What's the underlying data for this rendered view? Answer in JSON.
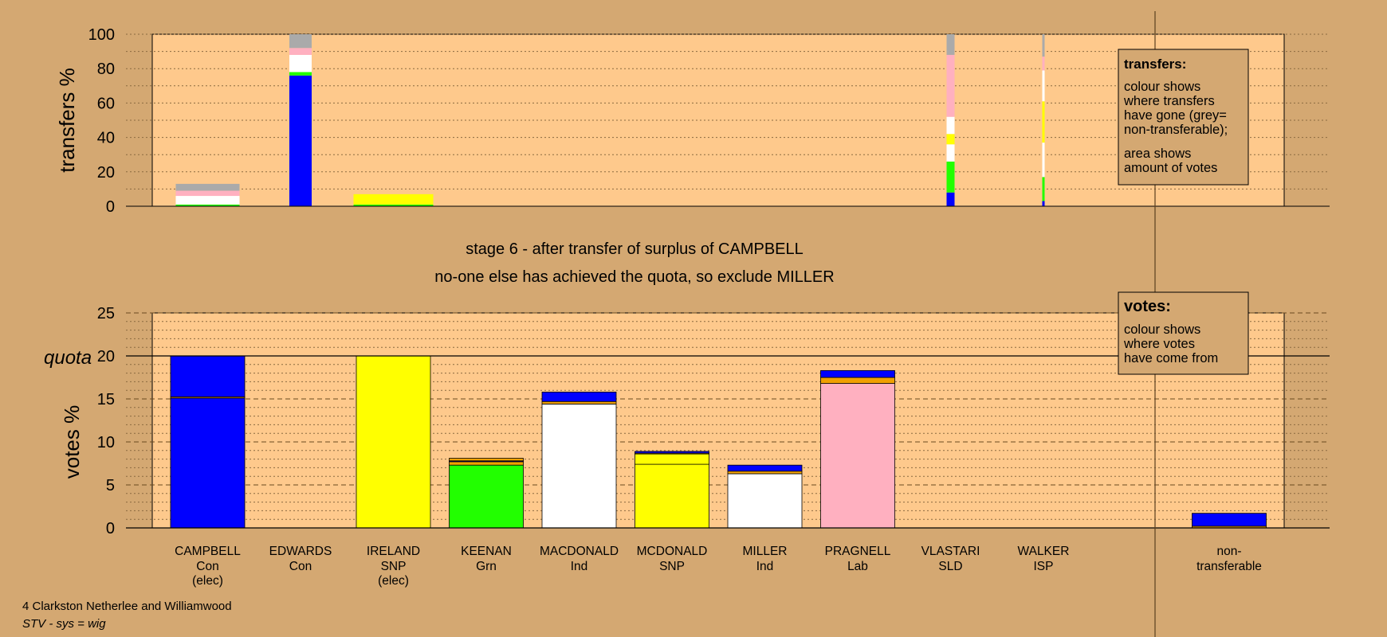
{
  "header": {
    "stage_line": "stage 6 - after transfer of surplus of CAMPBELL",
    "decision_line": "no-one else has achieved the quota, so exclude MILLER"
  },
  "footer": {
    "ward": "4 Clarkston Netherlee and Williamwood",
    "system": "STV - sys = wig"
  },
  "legend_transfers": {
    "title": "transfers:",
    "lines1": [
      "colour shows",
      "where transfers",
      "have gone (grey=",
      "non-transferable);"
    ],
    "lines2": [
      "area shows",
      "amount of votes"
    ]
  },
  "legend_votes": {
    "title": "votes:",
    "lines": [
      "colour shows",
      "where votes",
      "have come from"
    ]
  },
  "colors": {
    "background": "#d4a872",
    "plot_area": "#fec98c",
    "Con": "#0000ff",
    "SNP": "#ffff00",
    "Grn": "#22ff00",
    "Ind": "#ffffff",
    "Lab": "#ffb0c0",
    "orange": "#f0a000",
    "non_transferable": "#aaaaaa"
  },
  "chart_data": [
    {
      "type": "bar",
      "ylabel": "transfers %",
      "ylim": [
        0,
        100
      ],
      "yticks": [
        0,
        20,
        40,
        60,
        80,
        100
      ],
      "grid": true,
      "bars": [
        {
          "candidate": "CAMPBELL",
          "segments": [
            {
              "color": "#22ff00",
              "value": 1
            },
            {
              "color": "#ffffff",
              "value": 5
            },
            {
              "color": "#ffb0c0",
              "value": 3
            },
            {
              "color": "#aaaaaa",
              "value": 4
            }
          ]
        },
        {
          "candidate": "EDWARDS",
          "segments": [
            {
              "color": "#0000ff",
              "value": 76
            },
            {
              "color": "#22ff00",
              "value": 2
            },
            {
              "color": "#ffffff",
              "value": 10
            },
            {
              "color": "#ffb0c0",
              "value": 4
            },
            {
              "color": "#aaaaaa",
              "value": 8
            }
          ]
        },
        {
          "candidate": "IRELAND",
          "segments": [
            {
              "color": "#22ff00",
              "value": 1
            },
            {
              "color": "#ffff00",
              "value": 6
            }
          ]
        },
        {
          "candidate": "VLASTARI",
          "segments": [
            {
              "color": "#0000ff",
              "value": 8
            },
            {
              "color": "#22ff00",
              "value": 18
            },
            {
              "color": "#ffffff",
              "value": 10
            },
            {
              "color": "#ffff00",
              "value": 6
            },
            {
              "color": "#ffffff",
              "value": 10
            },
            {
              "color": "#ffb0c0",
              "value": 36
            },
            {
              "color": "#aaaaaa",
              "value": 12
            }
          ]
        },
        {
          "candidate": "WALKER",
          "segments": [
            {
              "color": "#0000ff",
              "value": 3
            },
            {
              "color": "#22ff00",
              "value": 14
            },
            {
              "color": "#ffffff",
              "value": 20
            },
            {
              "color": "#ffff00",
              "value": 24
            },
            {
              "color": "#ffffff",
              "value": 18
            },
            {
              "color": "#ffb0c0",
              "value": 8
            },
            {
              "color": "#aaaaaa",
              "value": 13
            }
          ]
        }
      ]
    },
    {
      "type": "bar",
      "ylabel": "votes %",
      "ylim": [
        0,
        25
      ],
      "yticks": [
        0,
        5,
        10,
        15,
        20,
        25
      ],
      "quota": 20,
      "quota_label": "quota",
      "grid": true,
      "categories": [
        {
          "name": "CAMPBELL",
          "party": "Con",
          "status": "(elec)"
        },
        {
          "name": "EDWARDS",
          "party": "Con",
          "status": ""
        },
        {
          "name": "IRELAND",
          "party": "SNP",
          "status": "(elec)"
        },
        {
          "name": "KEENAN",
          "party": "Grn",
          "status": ""
        },
        {
          "name": "MACDONALD",
          "party": "Ind",
          "status": ""
        },
        {
          "name": "MCDONALD",
          "party": "SNP",
          "status": ""
        },
        {
          "name": "MILLER",
          "party": "Ind",
          "status": ""
        },
        {
          "name": "PRAGNELL",
          "party": "Lab",
          "status": ""
        },
        {
          "name": "VLASTARI",
          "party": "SLD",
          "status": ""
        },
        {
          "name": "WALKER",
          "party": "ISP",
          "status": ""
        }
      ],
      "nontransferable": {
        "label1": "non-",
        "label2": "transferable",
        "segments": [
          {
            "color": "#f0a000",
            "value": 0.2
          },
          {
            "color": "#0000ff",
            "value": 1.5
          }
        ]
      },
      "bars": [
        {
          "candidate": "CAMPBELL",
          "segments": [
            {
              "color": "#0000ff",
              "value": 15.1
            },
            {
              "color": "#f0a000",
              "value": 0.15
            },
            {
              "color": "#0000ff",
              "value": 4.75
            }
          ]
        },
        {
          "candidate": "EDWARDS",
          "segments": []
        },
        {
          "candidate": "IRELAND",
          "segments": [
            {
              "color": "#ffff00",
              "value": 20
            }
          ]
        },
        {
          "candidate": "KEENAN",
          "segments": [
            {
              "color": "#22ff00",
              "value": 7.3
            },
            {
              "color": "#f0a000",
              "value": 0.4
            },
            {
              "color": "#0000ff",
              "value": 0.1
            },
            {
              "color": "#f0a000",
              "value": 0.3
            }
          ]
        },
        {
          "candidate": "MACDONALD",
          "segments": [
            {
              "color": "#ffffff",
              "value": 14.4
            },
            {
              "color": "#f0a000",
              "value": 0.3
            },
            {
              "color": "#0000ff",
              "value": 1.1
            }
          ]
        },
        {
          "candidate": "MCDONALD",
          "segments": [
            {
              "color": "#ffff00",
              "value": 7.4
            },
            {
              "color": "#ffff00",
              "value": 1.2
            },
            {
              "color": "#f0a000",
              "value": 0.1
            },
            {
              "color": "#0000ff",
              "value": 0.2
            }
          ]
        },
        {
          "candidate": "MILLER",
          "segments": [
            {
              "color": "#ffffff",
              "value": 6.3
            },
            {
              "color": "#f0a000",
              "value": 0.3
            },
            {
              "color": "#0000ff",
              "value": 0.7
            }
          ]
        },
        {
          "candidate": "PRAGNELL",
          "segments": [
            {
              "color": "#ffb0c0",
              "value": 16.8
            },
            {
              "color": "#f0a000",
              "value": 0.7
            },
            {
              "color": "#0000ff",
              "value": 0.8
            }
          ]
        },
        {
          "candidate": "VLASTARI",
          "segments": []
        },
        {
          "candidate": "WALKER",
          "segments": []
        }
      ]
    }
  ]
}
